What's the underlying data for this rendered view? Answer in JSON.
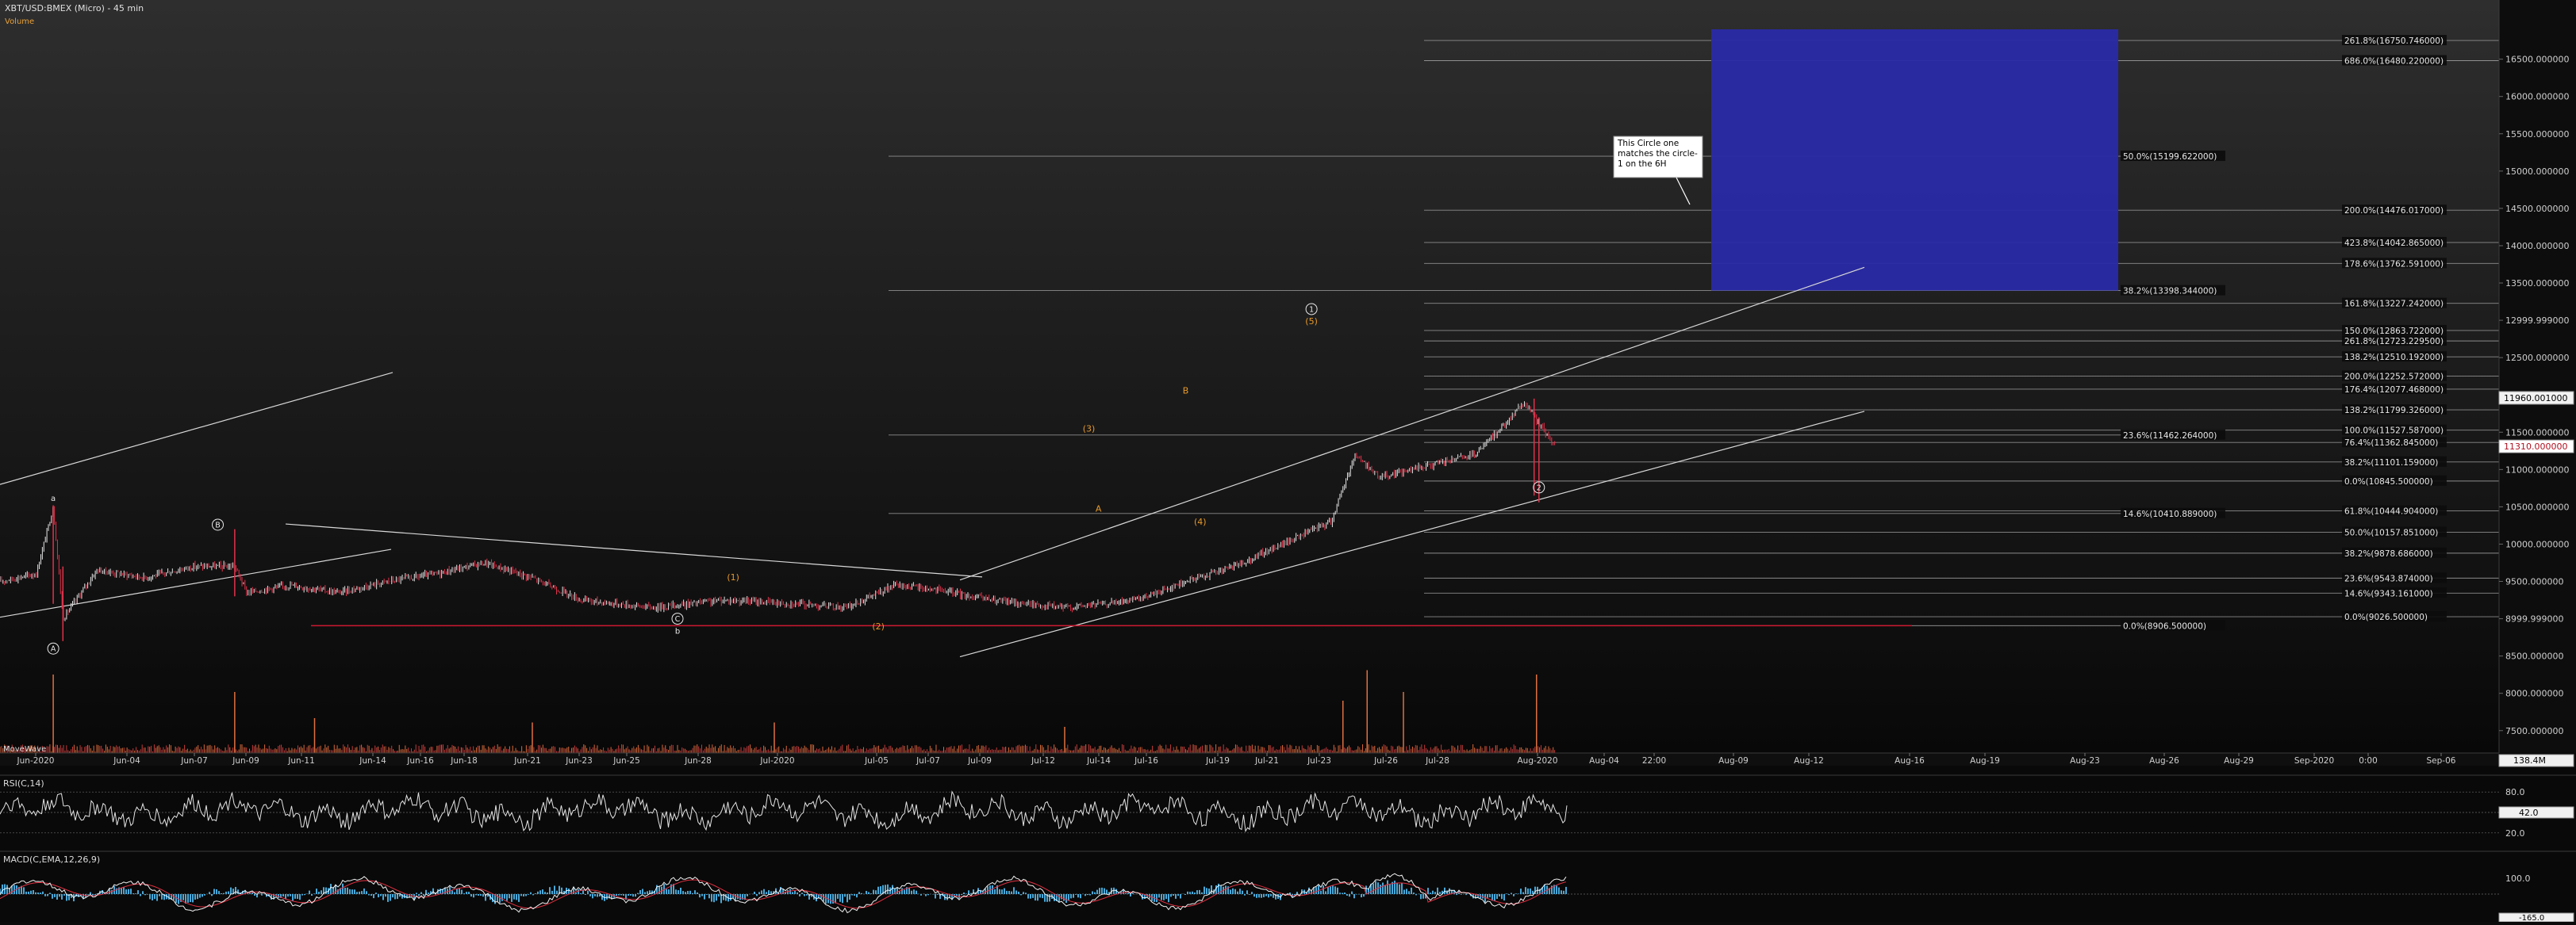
{
  "chart_title": "XBT/USD:BMEX (Micro) - 45 min",
  "volume_label": "Volume",
  "volume_indicator_label": "MoveWave",
  "rsi_label": "RSI(C,14)",
  "macd_label": "MACD(C,EMA,12,26,9)",
  "colors": {
    "background": "#0b0b0b",
    "candle_up": "#e6e6e6",
    "candle_down": "#e0324a",
    "fib_line": "#a0a0a0",
    "trendline": "#d8d8d8",
    "support_line": "#d01830",
    "target_box": "#2a2aa6",
    "wave_label": "#e89a2a",
    "macd_line": "#f0f0f0",
    "macd_signal": "#e03040",
    "macd_hist": "#4aa8d8"
  },
  "chart_data": {
    "type": "candlestick",
    "x_ticks": [
      "Jun-2020",
      "Jun-04",
      "Jun-07",
      "Jun-09",
      "Jun-11",
      "Jun-14",
      "Jun-16",
      "Jun-18",
      "Jun-21",
      "Jun-23",
      "Jun-25",
      "Jun-28",
      "Jul-2020",
      "Jul-05",
      "Jul-07",
      "Jul-09",
      "Jul-12",
      "Jul-14",
      "Jul-16",
      "Jul-19",
      "Jul-21",
      "Jul-23",
      "Jul-26",
      "Jul-28",
      "Aug-2020",
      "Aug-04",
      "22:00",
      "Aug-09",
      "Aug-12",
      "Aug-16",
      "Aug-19",
      "Aug-23",
      "Aug-26",
      "Aug-29",
      "Sep-2020",
      "0:00",
      "Sep-06"
    ],
    "y_ticks": [
      "16500.000000",
      "16000.000000",
      "15500.000000",
      "15000.000000",
      "14500.000000",
      "14000.000000",
      "13500.000000",
      "12999.999000",
      "12500.000000",
      "12000.000000",
      "11500.000000",
      "11000.000000",
      "10500.000000",
      "10000.000000",
      "9500.000000",
      "8999.999000",
      "8500.000000",
      "8000.000000",
      "7500.000000"
    ],
    "y_range": [
      7200,
      16900
    ],
    "last_price_labels": [
      "11960.001000",
      "11310.000000"
    ],
    "volume_last": "138.4M",
    "price_path": [
      {
        "d": 0,
        "p": 9500
      },
      {
        "d": 1.5,
        "p": 9600
      },
      {
        "d": 2.2,
        "p": 10500
      },
      {
        "d": 2.6,
        "p": 9000
      },
      {
        "d": 4,
        "p": 9650
      },
      {
        "d": 6,
        "p": 9550
      },
      {
        "d": 8,
        "p": 9700
      },
      {
        "d": 9.7,
        "p": 9700
      },
      {
        "d": 10.2,
        "p": 9350
      },
      {
        "d": 12,
        "p": 9450
      },
      {
        "d": 14,
        "p": 9350
      },
      {
        "d": 16,
        "p": 9500
      },
      {
        "d": 18,
        "p": 9600
      },
      {
        "d": 20,
        "p": 9750
      },
      {
        "d": 22,
        "p": 9550
      },
      {
        "d": 24,
        "p": 9250
      },
      {
        "d": 27,
        "p": 9150
      },
      {
        "d": 30,
        "p": 9250
      },
      {
        "d": 33,
        "p": 9200
      },
      {
        "d": 35,
        "p": 9150
      },
      {
        "d": 37,
        "p": 9450
      },
      {
        "d": 38.5,
        "p": 9400
      },
      {
        "d": 41,
        "p": 9250
      },
      {
        "d": 44,
        "p": 9150
      },
      {
        "d": 47,
        "p": 9250
      },
      {
        "d": 49,
        "p": 9500
      },
      {
        "d": 51,
        "p": 9700
      },
      {
        "d": 53,
        "p": 10000
      },
      {
        "d": 55,
        "p": 10300
      },
      {
        "d": 56,
        "p": 11200
      },
      {
        "d": 57,
        "p": 10900
      },
      {
        "d": 59,
        "p": 11050
      },
      {
        "d": 61,
        "p": 11200
      },
      {
        "d": 63,
        "p": 11900
      },
      {
        "d": 64.3,
        "p": 11300
      }
    ],
    "volume_spikes": [
      {
        "d": 2.2,
        "v": 0.9
      },
      {
        "d": 9.7,
        "v": 0.7
      },
      {
        "d": 13,
        "v": 0.4
      },
      {
        "d": 22,
        "v": 0.35
      },
      {
        "d": 32,
        "v": 0.35
      },
      {
        "d": 44,
        "v": 0.3
      },
      {
        "d": 55.5,
        "v": 0.6
      },
      {
        "d": 56.5,
        "v": 0.95
      },
      {
        "d": 58,
        "v": 0.7
      },
      {
        "d": 63.5,
        "v": 0.9
      }
    ],
    "fib_levels": [
      {
        "label": "261.8%(16750.746000)",
        "p": 16750.746,
        "side": "right"
      },
      {
        "label": "686.0%(16480.220000)",
        "p": 16480.22,
        "side": "right"
      },
      {
        "label": "50.0%(15199.622000)",
        "p": 15199.622,
        "side": "mid"
      },
      {
        "label": "200.0%(14476.017000)",
        "p": 14476.017,
        "side": "right"
      },
      {
        "label": "423.8%(14042.865000)",
        "p": 14042.865,
        "side": "right"
      },
      {
        "label": "178.6%(13762.591000)",
        "p": 13762.591,
        "side": "right"
      },
      {
        "label": "38.2%(13398.344000)",
        "p": 13398.344,
        "side": "mid"
      },
      {
        "label": "161.8%(13227.242000)",
        "p": 13227.242,
        "side": "right"
      },
      {
        "label": "150.0%(12863.722000)",
        "p": 12863.722,
        "side": "right"
      },
      {
        "label": "261.8%(12723.229500)",
        "p": 12723.2295,
        "side": "right"
      },
      {
        "label": "138.2%(12510.192000)",
        "p": 12510.192,
        "side": "right"
      },
      {
        "label": "200.0%(12252.572000)",
        "p": 12252.572,
        "side": "right"
      },
      {
        "label": "176.4%(12077.468000)",
        "p": 12077.468,
        "side": "right"
      },
      {
        "label": "138.2%(11799.326000)",
        "p": 11799.326,
        "side": "right"
      },
      {
        "label": "100.0%(11527.587000)",
        "p": 11527.587,
        "side": "right"
      },
      {
        "label": "23.6%(11462.264000)",
        "p": 11462.264,
        "side": "mid"
      },
      {
        "label": "76.4%(11362.845000)",
        "p": 11362.845,
        "side": "right"
      },
      {
        "label": "38.2%(11101.159000)",
        "p": 11101.159,
        "side": "right"
      },
      {
        "label": "0.0%(10845.500000)",
        "p": 10845.5,
        "side": "right"
      },
      {
        "label": "61.8%(10444.904000)",
        "p": 10444.904,
        "side": "right"
      },
      {
        "label": "14.6%(10410.889000)",
        "p": 10410.889,
        "side": "mid"
      },
      {
        "label": "50.0%(10157.851000)",
        "p": 10157.851,
        "side": "right"
      },
      {
        "label": "38.2%(9878.686000)",
        "p": 9878.686,
        "side": "right"
      },
      {
        "label": "23.6%(9543.874000)",
        "p": 9543.874,
        "side": "right"
      },
      {
        "label": "14.6%(9343.161000)",
        "p": 9343.161,
        "side": "right"
      },
      {
        "label": "0.0%(9026.500000)",
        "p": 9026.5,
        "side": "right"
      },
      {
        "label": "0.0%(8906.500000)",
        "p": 8906.5,
        "side": "mid"
      }
    ],
    "wave_labels": [
      {
        "text": "a",
        "d": 2.2,
        "p": 10620,
        "style": "plain"
      },
      {
        "text": "A",
        "d": 2.2,
        "p": 8600,
        "style": "circle"
      },
      {
        "text": "B",
        "d": 9.0,
        "p": 10260,
        "style": "circle"
      },
      {
        "text": "C",
        "d": 28.0,
        "p": 9000,
        "style": "circle"
      },
      {
        "text": "b",
        "d": 28.0,
        "p": 8840,
        "style": "plain"
      },
      {
        "text": "(1)",
        "d": 30.3,
        "p": 9560,
        "style": "orange"
      },
      {
        "text": "(2)",
        "d": 36.3,
        "p": 8900,
        "style": "orange"
      },
      {
        "text": "(3)",
        "d": 45.0,
        "p": 11550,
        "style": "orange"
      },
      {
        "text": "A",
        "d": 45.4,
        "p": 10480,
        "style": "orange"
      },
      {
        "text": "B",
        "d": 49.0,
        "p": 12060,
        "style": "orange"
      },
      {
        "text": "(4)",
        "d": 49.6,
        "p": 10300,
        "style": "orange"
      },
      {
        "text": "1",
        "d": 54.2,
        "p": 13150,
        "style": "circle"
      },
      {
        "text": "(5)",
        "d": 54.2,
        "p": 12990,
        "style": "orange"
      },
      {
        "text": "2",
        "d": 63.6,
        "p": 10760,
        "style": "circle"
      }
    ],
    "annotation_text": "This Circle one matches the circle-1 on the 6H"
  }
}
